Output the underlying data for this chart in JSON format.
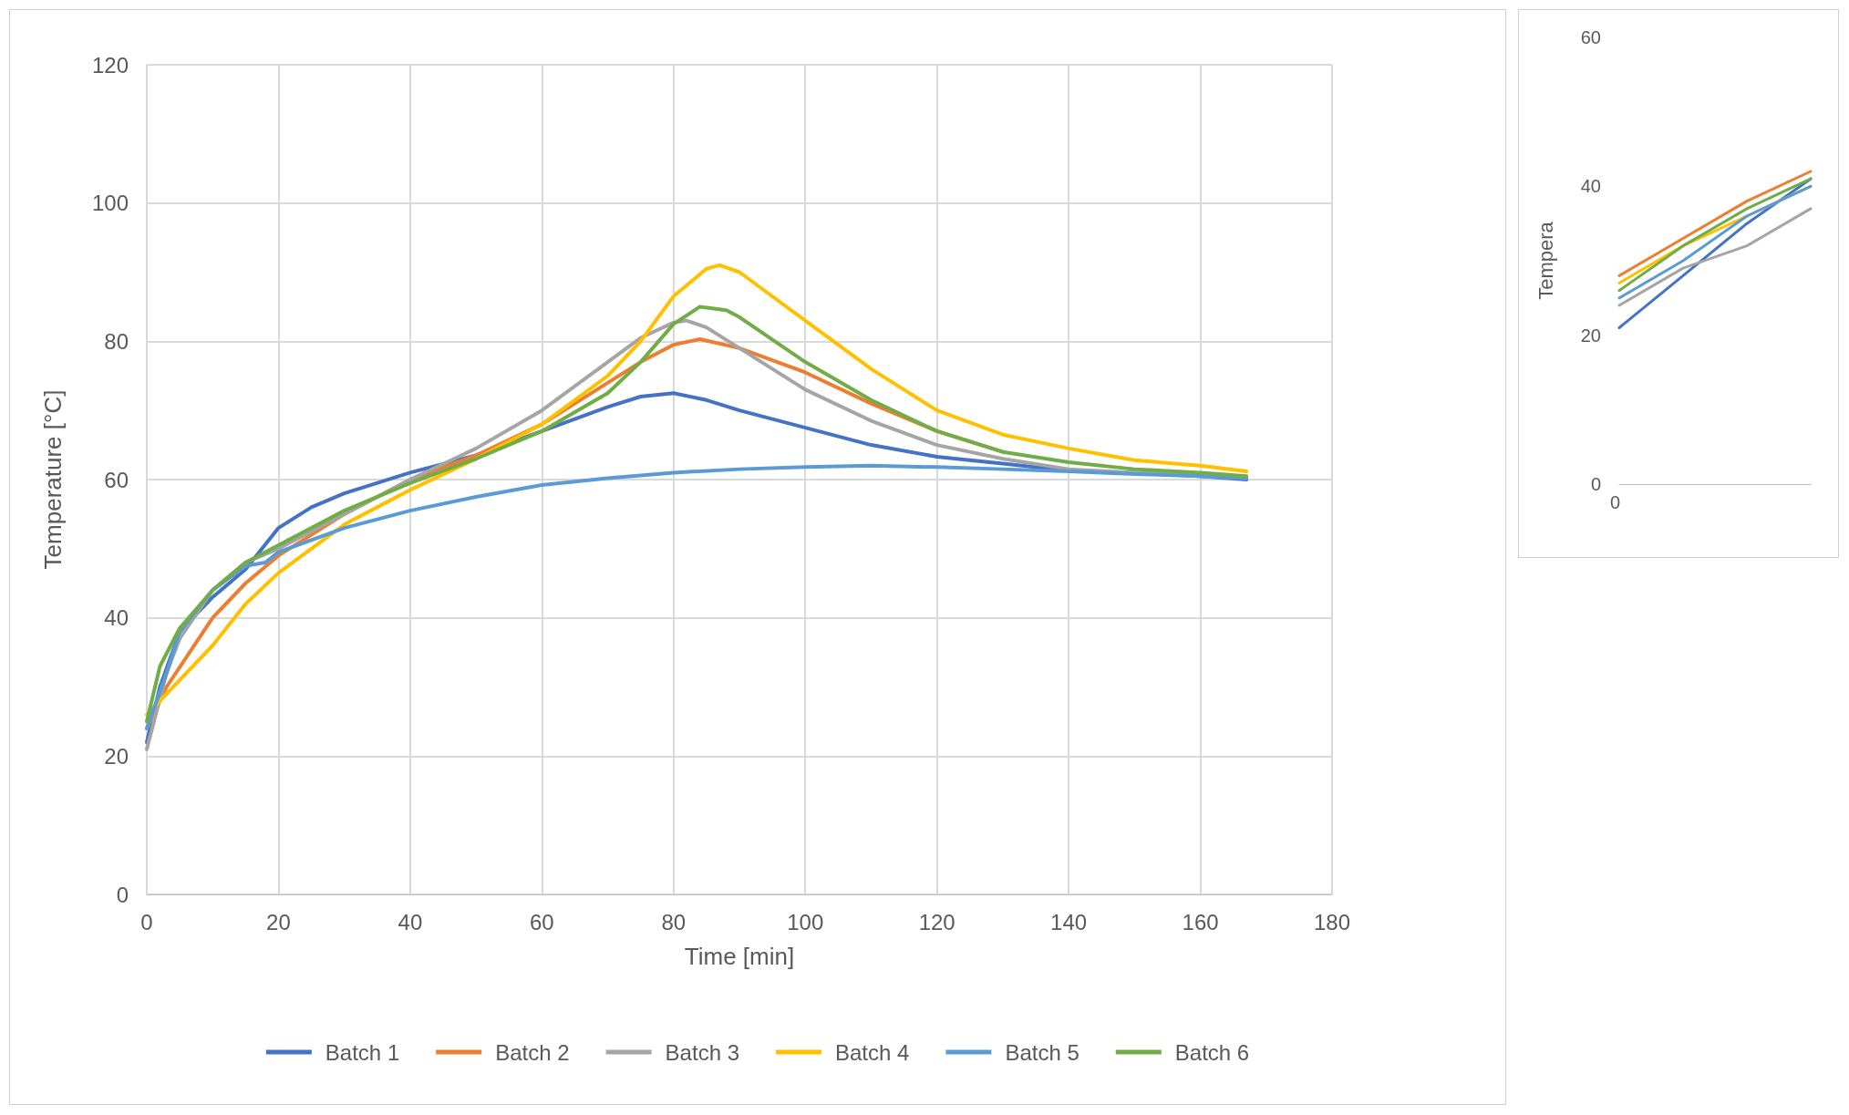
{
  "chart_data": [
    {
      "type": "line",
      "xlabel": "Time [min]",
      "ylabel": "Temperature [°C]",
      "xlim": [
        0,
        180
      ],
      "xticks": [
        0,
        20,
        40,
        60,
        80,
        100,
        120,
        140,
        160,
        180
      ],
      "ylim": [
        0,
        120
      ],
      "yticks": [
        0,
        20,
        40,
        60,
        80,
        100,
        120
      ],
      "grid": true,
      "legend": "bottom",
      "series": [
        {
          "name": "Batch 1",
          "color": "#4472c4",
          "x": [
            0,
            2,
            5,
            10,
            15,
            20,
            25,
            30,
            40,
            50,
            60,
            70,
            75,
            80,
            85,
            90,
            100,
            110,
            120,
            130,
            140,
            150,
            160,
            167
          ],
          "values": [
            22,
            30,
            38,
            43,
            47,
            53,
            56,
            58,
            61,
            63.5,
            67,
            70.5,
            72,
            72.5,
            71.5,
            70,
            67.5,
            65,
            63.3,
            62.3,
            61.3,
            61,
            60.5,
            60
          ]
        },
        {
          "name": "Batch 2",
          "color": "#ed7d31",
          "x": [
            0,
            3,
            10,
            15,
            20,
            30,
            40,
            50,
            60,
            70,
            75,
            80,
            84,
            90,
            100,
            110,
            120,
            130
          ],
          "values": [
            24,
            30,
            40,
            45,
            49,
            55,
            60,
            63.5,
            68,
            74,
            77,
            79.5,
            80.3,
            79,
            75.5,
            71,
            67,
            64
          ]
        },
        {
          "name": "Batch 3",
          "color": "#a5a5a5",
          "x": [
            0,
            3,
            5,
            10,
            15,
            20,
            30,
            40,
            50,
            60,
            70,
            75,
            80,
            82,
            85,
            90,
            100,
            110,
            120,
            130,
            140,
            150,
            160,
            167
          ],
          "values": [
            21,
            32,
            37,
            44,
            48,
            50,
            55,
            60,
            64.5,
            70,
            77,
            80.5,
            82.7,
            83,
            82,
            79,
            73,
            68.5,
            65,
            63,
            61.5,
            61,
            60.5,
            60.2
          ]
        },
        {
          "name": "Batch 4",
          "color": "#ffc000",
          "x": [
            0,
            3,
            10,
            15,
            20,
            30,
            40,
            50,
            60,
            70,
            75,
            80,
            85,
            87,
            90,
            100,
            110,
            120,
            130,
            140,
            150,
            160,
            167
          ],
          "values": [
            26,
            29,
            36,
            42,
            46.5,
            53.5,
            58.5,
            63,
            68,
            75,
            80,
            86.5,
            90.5,
            91,
            90,
            83,
            76,
            70,
            66.5,
            64.5,
            62.8,
            62,
            61.2
          ]
        },
        {
          "name": "Batch 5",
          "color": "#5b9bd5",
          "x": [
            0,
            3,
            5,
            10,
            15,
            18,
            20,
            30,
            40,
            50,
            60,
            70,
            80,
            90,
            100,
            110,
            120,
            130,
            140,
            150,
            160,
            167
          ],
          "values": [
            24,
            32,
            38,
            44,
            47.5,
            48,
            49.5,
            53,
            55.5,
            57.5,
            59.2,
            60.2,
            61,
            61.5,
            61.8,
            62,
            61.8,
            61.5,
            61.2,
            60.8,
            60.5,
            60.2
          ]
        },
        {
          "name": "Batch 6",
          "color": "#70ad47",
          "x": [
            0,
            2,
            5,
            10,
            15,
            20,
            30,
            40,
            50,
            60,
            70,
            75,
            80,
            84,
            88,
            90,
            100,
            110,
            120,
            130,
            140,
            150,
            160,
            167
          ],
          "values": [
            25,
            33,
            38.5,
            44,
            48,
            50.5,
            55.5,
            59.5,
            63,
            67,
            72.5,
            77,
            82.5,
            85,
            84.5,
            83.5,
            77,
            71.5,
            67,
            64,
            62.5,
            61.5,
            61,
            60.5
          ]
        }
      ]
    },
    {
      "type": "line",
      "ylabel": "Tempera",
      "categories": [
        null,
        null,
        null,
        null
      ],
      "annotations": [
        "0"
      ],
      "ylim": [
        0,
        60
      ],
      "yticks": [
        0,
        20,
        40,
        60
      ],
      "series": [
        {
          "color": "#4472c4",
          "values": [
            21,
            28,
            35,
            41
          ]
        },
        {
          "color": "#ed7d31",
          "values": [
            28,
            33,
            38,
            42
          ]
        },
        {
          "color": "#a5a5a5",
          "values": [
            24,
            29,
            32,
            37
          ]
        },
        {
          "color": "#ffc000",
          "values": [
            27,
            32,
            36,
            40
          ]
        },
        {
          "color": "#5b9bd5",
          "values": [
            25,
            30,
            36,
            40
          ]
        },
        {
          "color": "#70ad47",
          "values": [
            26,
            32,
            37,
            41
          ]
        }
      ]
    }
  ]
}
